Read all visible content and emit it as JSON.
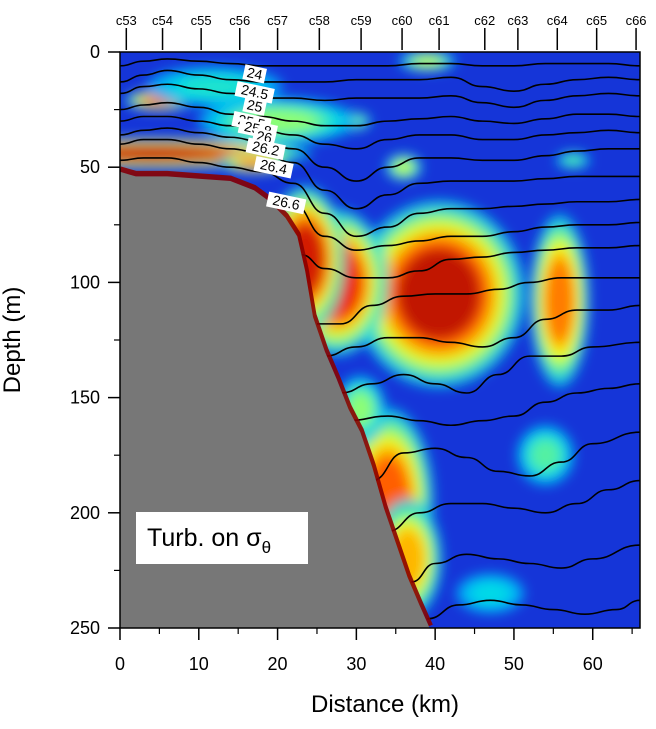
{
  "chart_data": {
    "type": "heatmap",
    "title": "",
    "xlabel": "Distance (km)",
    "ylabel": "Depth (m)",
    "xlim": [
      0,
      66
    ],
    "ylim": [
      250,
      0
    ],
    "x_ticks": [
      "0",
      "10",
      "20",
      "30",
      "40",
      "50",
      "60"
    ],
    "y_ticks": [
      "0",
      "50",
      "100",
      "150",
      "200",
      "250"
    ],
    "stations": [
      {
        "name": "c53",
        "x": 0.8
      },
      {
        "name": "c54",
        "x": 5.4
      },
      {
        "name": "c55",
        "x": 10.3
      },
      {
        "name": "c56",
        "x": 15.2
      },
      {
        "name": "c57",
        "x": 20.0
      },
      {
        "name": "c58",
        "x": 25.3
      },
      {
        "name": "c59",
        "x": 30.6
      },
      {
        "name": "c60",
        "x": 35.8
      },
      {
        "name": "c61",
        "x": 40.5
      },
      {
        "name": "c62",
        "x": 46.3
      },
      {
        "name": "c63",
        "x": 50.5
      },
      {
        "name": "c64",
        "x": 55.5
      },
      {
        "name": "c65",
        "x": 60.5
      },
      {
        "name": "c66",
        "x": 65.5
      }
    ],
    "annotation": {
      "text": "Turb. on σ",
      "subscript": "θ"
    },
    "colormap": "jet",
    "turbidity_blobs": [
      {
        "x": 40.5,
        "y": 105,
        "rx": 7.5,
        "ry": 28,
        "v": 0.97
      },
      {
        "x": 27.5,
        "y": 100,
        "rx": 4.5,
        "ry": 22,
        "v": 0.92
      },
      {
        "x": 23.5,
        "y": 90,
        "rx": 3.5,
        "ry": 22,
        "v": 0.95
      },
      {
        "x": 55.8,
        "y": 108,
        "rx": 2.6,
        "ry": 26,
        "v": 0.82
      },
      {
        "x": 4.0,
        "y": 44,
        "rx": 14,
        "ry": 4.5,
        "v": 0.97
      },
      {
        "x": 5.0,
        "y": 21,
        "rx": 3,
        "ry": 3,
        "v": 0.85
      },
      {
        "x": 17.0,
        "y": 48,
        "rx": 3,
        "ry": 3,
        "v": 0.8
      },
      {
        "x": 34.0,
        "y": 195,
        "rx": 4,
        "ry": 28,
        "v": 0.85
      },
      {
        "x": 36.5,
        "y": 220,
        "rx": 3,
        "ry": 18,
        "v": 0.75
      },
      {
        "x": 30.5,
        "y": 155,
        "rx": 2.2,
        "ry": 10,
        "v": 0.55
      },
      {
        "x": 36.0,
        "y": 50,
        "rx": 1.6,
        "ry": 4,
        "v": 0.6
      },
      {
        "x": 29.0,
        "y": 30,
        "rx": 2,
        "ry": 3,
        "v": 0.6
      },
      {
        "x": 39.0,
        "y": 4,
        "rx": 2.5,
        "ry": 3,
        "v": 0.6
      },
      {
        "x": 57.5,
        "y": 47,
        "rx": 1.5,
        "ry": 2.5,
        "v": 0.5
      },
      {
        "x": 54.0,
        "y": 175,
        "rx": 2.5,
        "ry": 9,
        "v": 0.5
      },
      {
        "x": 47.0,
        "y": 235,
        "rx": 3,
        "ry": 6,
        "v": 0.42
      },
      {
        "x": 20.0,
        "y": 30,
        "rx": 7,
        "ry": 7,
        "v": 0.55
      },
      {
        "x": 12.0,
        "y": 15,
        "rx": 6,
        "ry": 6,
        "v": 0.45
      }
    ],
    "bathymetry": [
      [
        0,
        52
      ],
      [
        2,
        54
      ],
      [
        6,
        54
      ],
      [
        10,
        55
      ],
      [
        14,
        56
      ],
      [
        17,
        60
      ],
      [
        19,
        65
      ],
      [
        21,
        72
      ],
      [
        22.5,
        80
      ],
      [
        23.5,
        95
      ],
      [
        24.5,
        115
      ],
      [
        26,
        130
      ],
      [
        27.5,
        142
      ],
      [
        29,
        155
      ],
      [
        30.5,
        165
      ],
      [
        32,
        180
      ],
      [
        33.5,
        198
      ],
      [
        35,
        213
      ],
      [
        36.5,
        228
      ],
      [
        38,
        240
      ],
      [
        39.3,
        250
      ]
    ],
    "series": [
      {
        "name": "24",
        "x": [
          0,
          3,
          6,
          10,
          14,
          18,
          22,
          26,
          30,
          34,
          38,
          42,
          46,
          50,
          54,
          58,
          62,
          66
        ],
        "y": [
          6,
          4,
          3,
          4,
          5,
          6,
          6,
          6,
          6,
          6,
          5,
          5,
          6,
          6,
          5,
          5,
          5,
          6
        ]
      },
      {
        "name": "24.5",
        "x": [
          0,
          3,
          6,
          10,
          14,
          18,
          22,
          26,
          30,
          34,
          38,
          42,
          46,
          50,
          54,
          58,
          62,
          66
        ],
        "y": [
          13,
          10,
          8,
          10,
          12,
          13,
          13,
          13,
          12,
          12,
          12,
          11,
          15,
          17,
          14,
          12,
          11,
          12
        ]
      },
      {
        "name": "25",
        "x": [
          0,
          3,
          6,
          10,
          14,
          18,
          22,
          26,
          30,
          34,
          38,
          42,
          46,
          50,
          54,
          58,
          62,
          66
        ],
        "y": [
          18,
          15,
          14,
          16,
          18,
          20,
          20,
          21,
          20,
          20,
          20,
          19,
          22,
          24,
          21,
          19,
          18,
          19
        ]
      },
      {
        "name": "25.5",
        "x": [
          0,
          3,
          6,
          10,
          14,
          18,
          22,
          26,
          30,
          34,
          38,
          42,
          46,
          50,
          54,
          58,
          62,
          66
        ],
        "y": [
          25,
          23,
          22,
          24,
          27,
          28,
          30,
          32,
          32,
          30,
          29,
          28,
          30,
          31,
          29,
          27,
          27,
          28
        ]
      },
      {
        "name": "25.8",
        "x": [
          0,
          3,
          6,
          10,
          14,
          18,
          22,
          26,
          30,
          34,
          38,
          42,
          46,
          50,
          54,
          58,
          62,
          66
        ],
        "y": [
          30,
          28,
          28,
          30,
          32,
          34,
          36,
          40,
          42,
          38,
          36,
          36,
          38,
          38,
          36,
          35,
          34,
          35
        ]
      },
      {
        "name": "26",
        "x": [
          0,
          3,
          6,
          10,
          14,
          18,
          22,
          26,
          30,
          34,
          38,
          42,
          46,
          50,
          54,
          58,
          62,
          66
        ],
        "y": [
          36,
          34,
          33,
          35,
          37,
          39,
          42,
          50,
          56,
          50,
          46,
          46,
          47,
          47,
          45,
          43,
          42,
          42
        ]
      },
      {
        "name": "26.2",
        "x": [
          0,
          3,
          6,
          10,
          14,
          18,
          22,
          26,
          30,
          34,
          38,
          42,
          46,
          50,
          54,
          58,
          62,
          66
        ],
        "y": [
          40,
          38,
          38,
          40,
          42,
          44,
          48,
          60,
          68,
          62,
          57,
          56,
          56,
          56,
          55,
          54,
          54,
          54
        ]
      },
      {
        "name": "26.4",
        "x": [
          0,
          3,
          6,
          10,
          14,
          18,
          22,
          26,
          30,
          34,
          38,
          42,
          46,
          50,
          54,
          58,
          62,
          66
        ],
        "y": [
          47,
          46,
          46,
          48,
          50,
          52,
          57,
          70,
          80,
          76,
          70,
          68,
          68,
          67,
          66,
          65,
          65,
          64
        ]
      },
      {
        "name": "26.6",
        "x": [
          19,
          22,
          26,
          30,
          34,
          38,
          42,
          46,
          50,
          54,
          58,
          62,
          66
        ],
        "y": [
          62,
          66,
          80,
          86,
          84,
          82,
          80,
          80,
          78,
          76,
          75,
          75,
          74
        ]
      },
      {
        "name": "",
        "x": [
          23,
          26,
          30,
          34,
          38,
          42,
          46,
          50,
          54,
          58,
          62,
          66
        ],
        "y": [
          88,
          94,
          98,
          98,
          95,
          90,
          89,
          87,
          86,
          85,
          85,
          84
        ]
      },
      {
        "name": "",
        "x": [
          25,
          28,
          32,
          36,
          40,
          44,
          48,
          52,
          56,
          60,
          66
        ],
        "y": [
          118,
          118,
          110,
          106,
          105,
          105,
          103,
          100,
          98,
          98,
          98
        ]
      },
      {
        "name": "",
        "x": [
          26,
          30,
          34,
          38,
          42,
          46,
          50,
          54,
          58,
          62,
          66
        ],
        "y": [
          132,
          128,
          124,
          124,
          126,
          128,
          124,
          116,
          112,
          112,
          110
        ]
      },
      {
        "name": "",
        "x": [
          28,
          32,
          36,
          40,
          44,
          48,
          52,
          56,
          60,
          66
        ],
        "y": [
          148,
          144,
          140,
          144,
          148,
          140,
          132,
          132,
          128,
          126
        ]
      },
      {
        "name": "",
        "x": [
          29,
          34,
          38,
          42,
          46,
          50,
          54,
          58,
          62,
          66
        ],
        "y": [
          160,
          158,
          160,
          162,
          160,
          158,
          152,
          148,
          146,
          144
        ]
      },
      {
        "name": "",
        "x": [
          32,
          36,
          40,
          44,
          48,
          52,
          56,
          60,
          66
        ],
        "y": [
          186,
          174,
          172,
          176,
          182,
          184,
          178,
          170,
          165
        ]
      },
      {
        "name": "",
        "x": [
          34,
          38,
          42,
          46,
          50,
          54,
          58,
          62,
          66
        ],
        "y": [
          208,
          200,
          196,
          196,
          198,
          200,
          196,
          190,
          186
        ]
      },
      {
        "name": "",
        "x": [
          37,
          40,
          44,
          48,
          52,
          56,
          60,
          66
        ],
        "y": [
          230,
          222,
          218,
          220,
          222,
          224,
          220,
          214
        ]
      },
      {
        "name": "",
        "x": [
          39,
          43,
          47,
          51,
          55,
          59,
          63,
          66
        ],
        "y": [
          246,
          240,
          238,
          240,
          242,
          244,
          242,
          238
        ]
      }
    ],
    "contour_labels": [
      {
        "text": "24",
        "x": 17.0,
        "y": 11
      },
      {
        "text": "24.5",
        "x": 17.0,
        "y": 19
      },
      {
        "text": "25",
        "x": 17.0,
        "y": 25
      },
      {
        "text": "25.5",
        "x": 16.6,
        "y": 32
      },
      {
        "text": "25.8",
        "x": 17.4,
        "y": 35
      },
      {
        "text": "26",
        "x": 18.2,
        "y": 38.5
      },
      {
        "text": "26.2",
        "x": 18.4,
        "y": 43.5
      },
      {
        "text": "26.4",
        "x": 19.4,
        "y": 51.5
      },
      {
        "text": "26.6",
        "x": 21.0,
        "y": 67
      }
    ]
  }
}
